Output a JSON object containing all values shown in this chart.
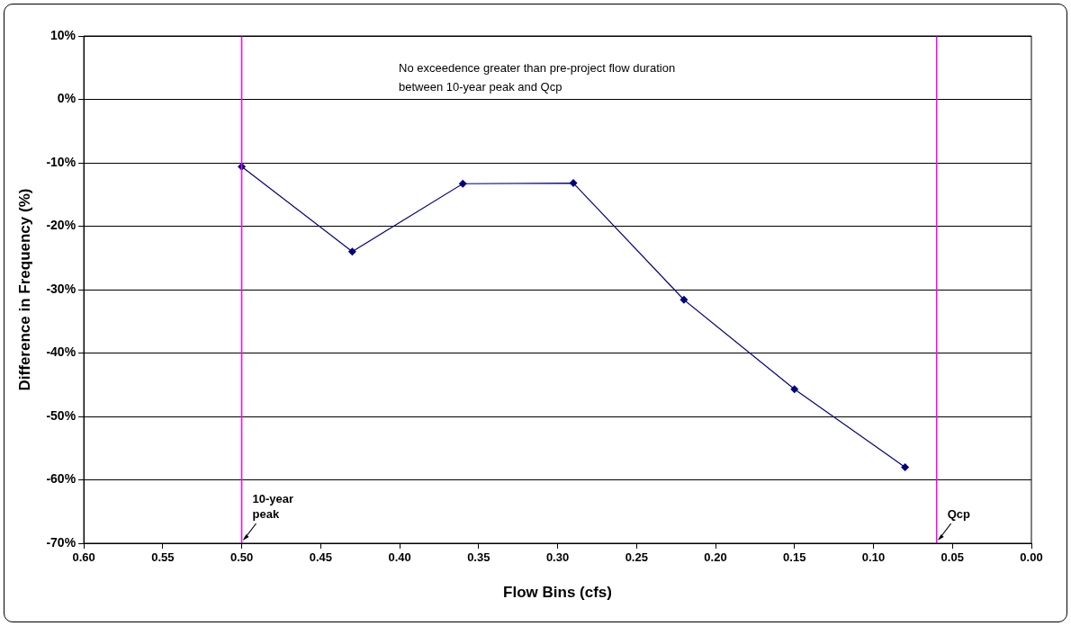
{
  "chart_data": {
    "type": "line",
    "xlabel": "Flow Bins (cfs)",
    "ylabel": "Difference in Frequency (%)",
    "x": [
      0.5,
      0.43,
      0.36,
      0.29,
      0.22,
      0.15,
      0.08
    ],
    "series": [
      {
        "color": "#000080",
        "values": [
          -10.6,
          -24.0,
          -13.3,
          -13.2,
          -31.6,
          -45.7,
          -58.0
        ]
      }
    ],
    "xlim": [
      0.6,
      0
    ],
    "xticks": [
      {
        "value": 0.6,
        "label": "0.60"
      },
      {
        "value": 0.55,
        "label": "0.55"
      },
      {
        "value": 0.5,
        "label": "0.50"
      },
      {
        "value": 0.45,
        "label": "0.45"
      },
      {
        "value": 0.4,
        "label": "0.40"
      },
      {
        "value": 0.35,
        "label": "0.35"
      },
      {
        "value": 0.3,
        "label": "0.30"
      },
      {
        "value": 0.25,
        "label": "0.25"
      },
      {
        "value": 0.2,
        "label": "0.20"
      },
      {
        "value": 0.15,
        "label": "0.15"
      },
      {
        "value": 0.1,
        "label": "0.10"
      },
      {
        "value": 0.05,
        "label": "0.05"
      },
      {
        "value": 0,
        "label": "0.00"
      }
    ],
    "ylim": [
      -70,
      10
    ],
    "yticks": [
      {
        "value": -70,
        "label": "-70%"
      },
      {
        "value": -60,
        "label": "-60%"
      },
      {
        "value": -50,
        "label": "-50%"
      },
      {
        "value": -40,
        "label": "-40%"
      },
      {
        "value": -30,
        "label": "-30%"
      },
      {
        "value": -20,
        "label": "-20%"
      },
      {
        "value": -10,
        "label": "-10%"
      },
      {
        "value": 0,
        "label": "0%"
      },
      {
        "value": 10,
        "label": "10%"
      }
    ],
    "grid": "y",
    "marker": "diamond",
    "line_style": "solid",
    "ref_lines": [
      {
        "axis": "x",
        "value": 0.5,
        "label": "10-year peak",
        "color": "#ff00ff"
      },
      {
        "axis": "x",
        "value": 0.06,
        "label": "Qcp",
        "color": "#ff00ff"
      }
    ],
    "annotations": [
      "No exceedence greater than pre-project flow duration between 10-year peak and Qcp"
    ]
  }
}
